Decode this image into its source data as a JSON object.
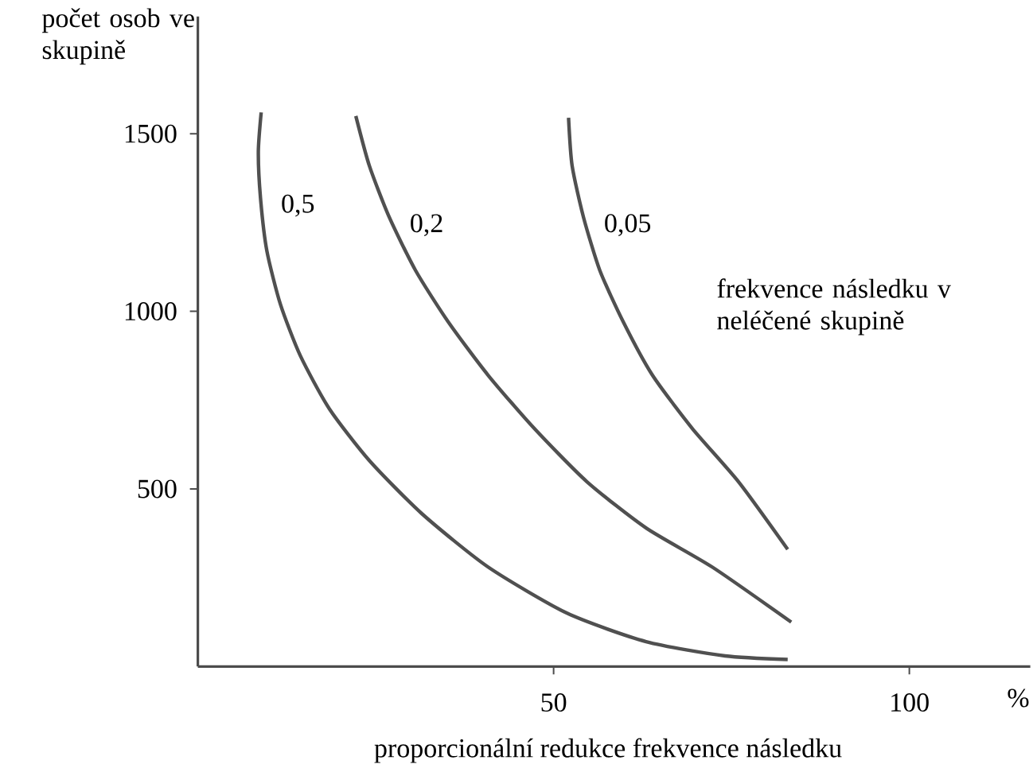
{
  "chart_data": {
    "type": "line",
    "xlabel": "proporcionální redukce frekvence následku",
    "ylabel": "počet osob ve skupině",
    "legend_title": "frekvence následku v neléčené skupině",
    "annotations": [
      "%"
    ],
    "xlim": [
      0,
      117
    ],
    "ylim": [
      0,
      1830
    ],
    "xticks": [
      50,
      100
    ],
    "yticks": [
      500,
      1000,
      1500
    ],
    "grid": false,
    "legend": false,
    "marker": "none",
    "line_style": "solid",
    "series": [
      {
        "name": "0,5",
        "color": "#505050",
        "x": [
          8.9,
          8.5,
          8.8,
          9.7,
          11.6,
          14.4,
          18.5,
          24.1,
          31.5,
          40.8,
          51.9,
          63.0,
          74.1,
          82.9
        ],
        "values": [
          1560,
          1450,
          1320,
          1170,
          1020,
          875,
          725,
          580,
          430,
          280,
          150,
          70,
          30,
          20
        ]
      },
      {
        "name": "0,2",
        "color": "#505050",
        "x": [
          22.2,
          24.1,
          26.9,
          30.6,
          35.2,
          40.8,
          47.3,
          54.7,
          63.0,
          72.3,
          83.4
        ],
        "values": [
          1550,
          1410,
          1265,
          1115,
          970,
          820,
          670,
          520,
          390,
          280,
          125
        ]
      },
      {
        "name": "0,05",
        "color": "#505050",
        "x": [
          52.1,
          52.6,
          54.2,
          56.5,
          59.8,
          63.9,
          69.5,
          76.0,
          82.9
        ],
        "values": [
          1545,
          1410,
          1265,
          1115,
          970,
          820,
          670,
          520,
          330
        ]
      }
    ]
  }
}
